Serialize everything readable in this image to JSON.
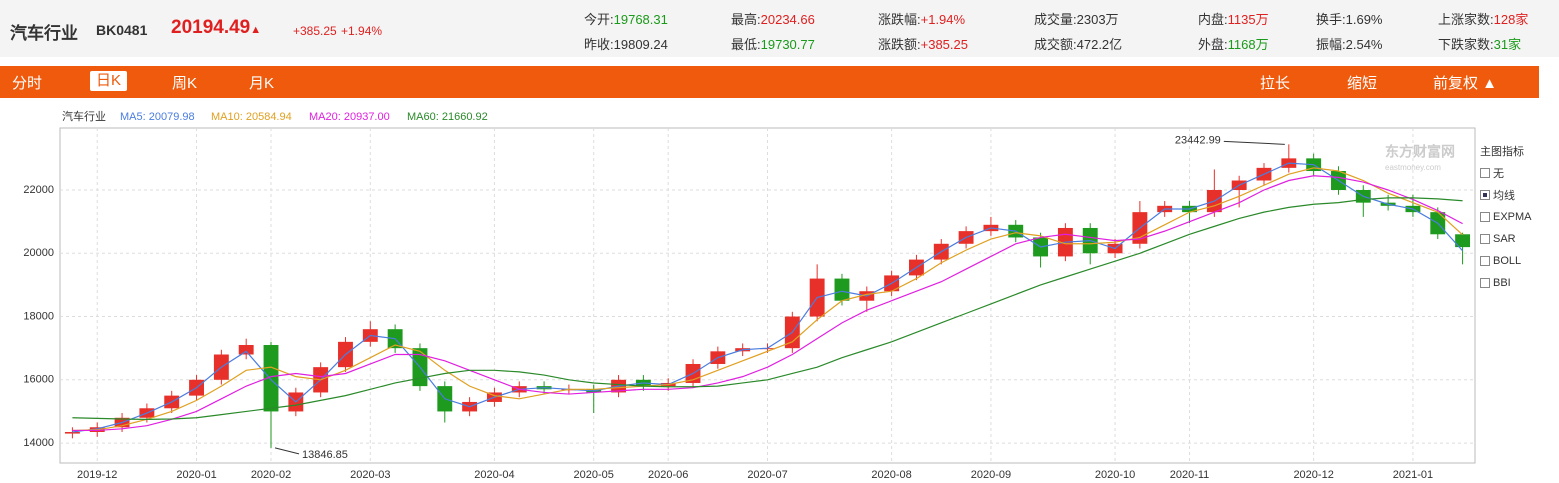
{
  "header": {
    "name": "汽车行业",
    "code": "BK0481",
    "price": "20194.49",
    "arrow": "▲",
    "change": "+385.25",
    "change_pct": "+1.94%",
    "stats": [
      [
        {
          "label": "今开:",
          "value": "19768.31",
          "color": "#1a9a1a"
        },
        {
          "label": "最高:",
          "value": "20234.66",
          "color": "#e02020"
        },
        {
          "label": "涨跌幅:",
          "value": "+1.94%",
          "color": "#e02020"
        },
        {
          "label": "成交量:",
          "value": "2303万",
          "color": "#333"
        },
        {
          "label": "内盘:",
          "value": "1135万",
          "color": "#e02020"
        },
        {
          "label": "换手:",
          "value": "1.69%",
          "color": "#333"
        },
        {
          "label": "上涨家数:",
          "value": "128家",
          "color": "#e02020"
        }
      ],
      [
        {
          "label": "昨收:",
          "value": "19809.24",
          "color": "#333"
        },
        {
          "label": "最低:",
          "value": "19730.77",
          "color": "#1a9a1a"
        },
        {
          "label": "涨跌额:",
          "value": "+385.25",
          "color": "#e02020"
        },
        {
          "label": "成交额:",
          "value": "472.2亿",
          "color": "#333"
        },
        {
          "label": "外盘:",
          "value": "1168万",
          "color": "#1a9a1a"
        },
        {
          "label": "振幅:",
          "value": "2.54%",
          "color": "#333"
        },
        {
          "label": "下跌家数:",
          "value": "31家",
          "color": "#1a9a1a"
        }
      ]
    ]
  },
  "toolbar": {
    "tabs": [
      "分时",
      "日K",
      "周K",
      "月K"
    ],
    "active": 1,
    "actions": [
      "拉长",
      "缩短",
      "前复权 ▲"
    ]
  },
  "indicator_panel": {
    "title": "主图指标",
    "options": [
      "无",
      "均线",
      "EXPMA",
      "SAR",
      "BOLL",
      "BBI"
    ],
    "checked": 1
  },
  "watermark": {
    "name": "东方财富网",
    "site": "eastmoney.com"
  },
  "chart_data": {
    "type": "candlestick",
    "title": "汽车行业",
    "up_color": "#e8302a",
    "down_color": "#1e9a1e",
    "categories": [
      null,
      "2019-12",
      null,
      null,
      null,
      "2020-01",
      null,
      null,
      "2020-02",
      null,
      null,
      null,
      "2020-03",
      null,
      null,
      null,
      null,
      "2020-04",
      null,
      null,
      null,
      "2020-05",
      null,
      null,
      "2020-06",
      null,
      null,
      null,
      "2020-07",
      null,
      null,
      null,
      null,
      "2020-08",
      null,
      null,
      null,
      "2020-09",
      null,
      null,
      null,
      null,
      "2020-10",
      null,
      null,
      "2020-11",
      null,
      null,
      null,
      null,
      "2020-12",
      null,
      null,
      null,
      "2021-01",
      null,
      null
    ],
    "open": [
      14300,
      14350,
      14500,
      14800,
      15100,
      15500,
      16000,
      16800,
      17100,
      15000,
      15600,
      16400,
      17200,
      17600,
      17000,
      15800,
      15000,
      15300,
      15600,
      15800,
      15700,
      15700,
      15600,
      16000,
      15800,
      15900,
      16500,
      16900,
      17000,
      17000,
      18000,
      19200,
      18500,
      18800,
      19300,
      19800,
      20300,
      20700,
      20900,
      20500,
      19900,
      20800,
      20000,
      20300,
      21300,
      21500,
      21300,
      22000,
      22300,
      22700,
      23000,
      22600,
      22000,
      21600,
      21500,
      21300,
      20600
    ],
    "high": [
      14500,
      14650,
      14950,
      15250,
      15650,
      16150,
      16950,
      17300,
      17200,
      15750,
      16550,
      17350,
      17850,
      17750,
      17150,
      15950,
      15450,
      15750,
      15950,
      15950,
      15850,
      15850,
      16150,
      16150,
      16050,
      16650,
      17050,
      17150,
      17150,
      18150,
      19650,
      19350,
      18950,
      19450,
      19950,
      20450,
      20850,
      21150,
      21050,
      20650,
      20950,
      20950,
      20450,
      21650,
      21650,
      21650,
      22650,
      22450,
      22850,
      23442.99,
      23150,
      22750,
      22150,
      21850,
      21850,
      21450,
      20650
    ],
    "low": [
      14150,
      14200,
      14350,
      14650,
      14950,
      15350,
      15850,
      16650,
      13846.85,
      14850,
      15450,
      16250,
      17050,
      16850,
      15650,
      14650,
      14850,
      15150,
      15450,
      15550,
      15550,
      14950,
      15450,
      15650,
      15650,
      15750,
      16350,
      16750,
      16850,
      16850,
      17850,
      18350,
      18150,
      18650,
      19150,
      19650,
      20150,
      20550,
      20350,
      19550,
      19750,
      19650,
      19850,
      20150,
      21150,
      20950,
      21150,
      21450,
      22150,
      22550,
      22450,
      21850,
      21150,
      21350,
      21150,
      20450,
      19650
    ],
    "close": [
      14350,
      14500,
      14800,
      15100,
      15500,
      16000,
      16800,
      17100,
      15000,
      15600,
      16400,
      17200,
      17600,
      17000,
      15800,
      15000,
      15300,
      15600,
      15800,
      15700,
      15700,
      15600,
      16000,
      15800,
      15900,
      16500,
      16900,
      17000,
      17000,
      18000,
      19200,
      18500,
      18800,
      19300,
      19800,
      20300,
      20700,
      20900,
      20500,
      19900,
      20800,
      20000,
      20300,
      21300,
      21500,
      21300,
      22000,
      22300,
      22700,
      23000,
      22600,
      22000,
      21600,
      21500,
      21300,
      20600,
      20194.49
    ],
    "series": [
      {
        "name": "MA5: 20079.98",
        "color": "#4a7de0",
        "values": [
          14350,
          14450,
          14650,
          14950,
          15300,
          15750,
          16400,
          16900,
          16000,
          15300,
          16000,
          16800,
          17400,
          17300,
          16400,
          15400,
          15150,
          15450,
          15700,
          15750,
          15700,
          15650,
          15800,
          15900,
          15850,
          16200,
          16700,
          16950,
          17000,
          17500,
          18600,
          18800,
          18650,
          19050,
          19550,
          20050,
          20500,
          20800,
          20700,
          20200,
          20350,
          20400,
          20150,
          20800,
          21400,
          21400,
          21650,
          22150,
          22500,
          22850,
          22800,
          22300,
          21800,
          21550,
          21400,
          20950,
          20079.98
        ]
      },
      {
        "name": "MA10: 20584.94",
        "color": "#e0a020",
        "values": [
          14400,
          14420,
          14550,
          14750,
          15000,
          15350,
          15800,
          16300,
          16400,
          16100,
          16000,
          16300,
          16700,
          17100,
          16900,
          16300,
          15800,
          15500,
          15400,
          15550,
          15700,
          15700,
          15750,
          15800,
          15850,
          16000,
          16300,
          16600,
          16900,
          17200,
          17900,
          18500,
          18700,
          18800,
          19200,
          19700,
          20100,
          20450,
          20650,
          20550,
          20300,
          20300,
          20350,
          20500,
          20900,
          21300,
          21500,
          21800,
          22150,
          22500,
          22700,
          22600,
          22300,
          21900,
          21600,
          21300,
          20584.94
        ]
      },
      {
        "name": "MA20: 20937.00",
        "color": "#e020e0",
        "values": [
          14400,
          14400,
          14450,
          14550,
          14750,
          15000,
          15400,
          15800,
          16100,
          16200,
          16100,
          16200,
          16500,
          16800,
          16800,
          16600,
          16300,
          16000,
          15700,
          15600,
          15550,
          15600,
          15650,
          15700,
          15700,
          15750,
          15900,
          16100,
          16400,
          16800,
          17300,
          17800,
          18200,
          18500,
          18800,
          19100,
          19500,
          19900,
          20300,
          20500,
          20600,
          20500,
          20400,
          20450,
          20700,
          21000,
          21300,
          21600,
          22000,
          22300,
          22450,
          22400,
          22250,
          22000,
          21700,
          21350,
          20937
        ]
      },
      {
        "name": "MA60: 21660.92",
        "color": "#2a8a2a",
        "values": [
          14800,
          14780,
          14760,
          14750,
          14760,
          14800,
          14900,
          15000,
          15100,
          15200,
          15350,
          15500,
          15700,
          15900,
          16050,
          16200,
          16300,
          16300,
          16250,
          16150,
          16000,
          15900,
          15850,
          15800,
          15780,
          15780,
          15800,
          15900,
          16000,
          16200,
          16400,
          16700,
          16950,
          17200,
          17500,
          17800,
          18100,
          18400,
          18700,
          19000,
          19250,
          19500,
          19750,
          20000,
          20300,
          20600,
          20850,
          21100,
          21300,
          21450,
          21550,
          21600,
          21700,
          21750,
          21750,
          21720,
          21660.92
        ]
      }
    ],
    "ylim": [
      13370,
      23960
    ],
    "yticks": [
      14000,
      16000,
      18000,
      20000,
      22000
    ],
    "grid": true
  }
}
